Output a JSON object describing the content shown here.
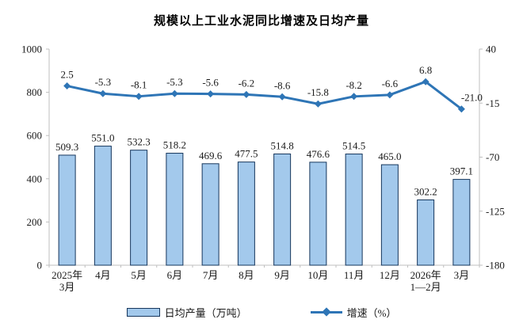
{
  "title": "规模以上工业水泥同比增速及日均产量",
  "legend": {
    "bars_label": "日均产量（万吨）",
    "line_label": "增速（%）"
  },
  "colors": {
    "bar_fill": "#A3C9EC",
    "bar_border": "#16365C",
    "line": "#2E75B6",
    "axis": "#BFBFBF",
    "text": "#1a1a1a"
  },
  "chart_data": {
    "type": "bar+line combo, dual axis",
    "title": "规模以上工业水泥同比增速及日均产量",
    "categories": [
      [
        "2025年",
        "3月"
      ],
      [
        "4月"
      ],
      [
        "5月"
      ],
      [
        "6月"
      ],
      [
        "7月"
      ],
      [
        "8月"
      ],
      [
        "9月"
      ],
      [
        "10月"
      ],
      [
        "11月"
      ],
      [
        "12月"
      ],
      [
        "2026年",
        "1—2月"
      ],
      [
        "3月"
      ]
    ],
    "series": [
      {
        "name": "日均产量（万吨）",
        "type": "bar",
        "axis": "left",
        "values": [
          509.3,
          551.0,
          532.3,
          518.2,
          469.6,
          477.5,
          514.8,
          476.6,
          514.5,
          465.0,
          302.2,
          397.1
        ]
      },
      {
        "name": "增速（%）",
        "type": "line",
        "axis": "right",
        "values": [
          2.5,
          -5.3,
          -8.1,
          -5.3,
          -5.6,
          -6.2,
          -8.6,
          -15.8,
          -8.2,
          -6.6,
          6.8,
          -21.0
        ]
      }
    ],
    "left_axis": {
      "min": 0,
      "max": 1000,
      "ticks": [
        1000,
        800,
        600,
        400,
        200,
        0
      ]
    },
    "right_axis": {
      "min": -180,
      "max": 40,
      "ticks": [
        40,
        -15,
        -70,
        -125,
        -180
      ]
    },
    "grid": false,
    "legend_position": "bottom",
    "data_labels": true
  }
}
